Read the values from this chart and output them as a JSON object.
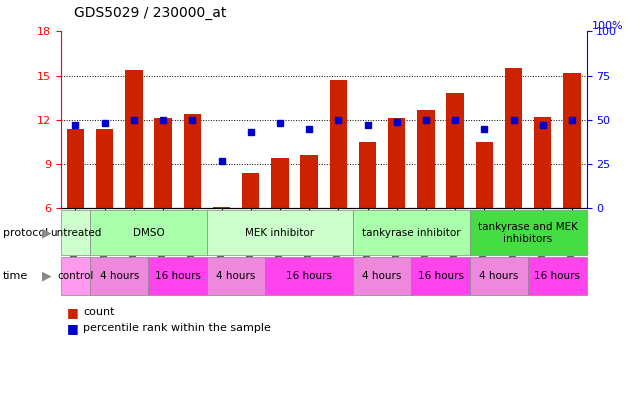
{
  "title": "GDS5029 / 230000_at",
  "samples": [
    "GSM1340521",
    "GSM1340522",
    "GSM1340523",
    "GSM1340524",
    "GSM1340531",
    "GSM1340532",
    "GSM1340527",
    "GSM1340528",
    "GSM1340535",
    "GSM1340536",
    "GSM1340525",
    "GSM1340526",
    "GSM1340533",
    "GSM1340534",
    "GSM1340529",
    "GSM1340530",
    "GSM1340537",
    "GSM1340538"
  ],
  "counts": [
    11.4,
    11.4,
    15.4,
    12.1,
    12.4,
    6.1,
    8.4,
    9.4,
    9.6,
    14.7,
    10.5,
    12.1,
    12.7,
    13.8,
    10.5,
    15.5,
    12.2,
    15.2
  ],
  "percentiles": [
    47,
    48,
    50,
    50,
    50,
    27,
    43,
    48,
    45,
    50,
    47,
    49,
    50,
    50,
    45,
    50,
    47,
    50
  ],
  "ylim_left": [
    6,
    18
  ],
  "ylim_right": [
    0,
    100
  ],
  "yticks_left": [
    6,
    9,
    12,
    15,
    18
  ],
  "yticks_right": [
    0,
    25,
    50,
    75,
    100
  ],
  "bar_color": "#CC2200",
  "dot_color": "#0000CC",
  "protocol_data": [
    {
      "label": "untreated",
      "start": 0,
      "end": 1,
      "color": "#CCFFCC"
    },
    {
      "label": "DMSO",
      "start": 1,
      "end": 5,
      "color": "#AAFFAA"
    },
    {
      "label": "MEK inhibitor",
      "start": 5,
      "end": 10,
      "color": "#CCFFCC"
    },
    {
      "label": "tankyrase inhibitor",
      "start": 10,
      "end": 14,
      "color": "#AAFFAA"
    },
    {
      "label": "tankyrase and MEK\ninhibitors",
      "start": 14,
      "end": 18,
      "color": "#44DD44"
    }
  ],
  "time_data": [
    {
      "label": "control",
      "start": 0,
      "end": 1,
      "color": "#FF99EE"
    },
    {
      "label": "4 hours",
      "start": 1,
      "end": 3,
      "color": "#EE88DD"
    },
    {
      "label": "16 hours",
      "start": 3,
      "end": 5,
      "color": "#FF44EE"
    },
    {
      "label": "4 hours",
      "start": 5,
      "end": 7,
      "color": "#EE88DD"
    },
    {
      "label": "16 hours",
      "start": 7,
      "end": 10,
      "color": "#FF44EE"
    },
    {
      "label": "4 hours",
      "start": 10,
      "end": 12,
      "color": "#EE88DD"
    },
    {
      "label": "16 hours",
      "start": 12,
      "end": 14,
      "color": "#FF44EE"
    },
    {
      "label": "4 hours",
      "start": 14,
      "end": 16,
      "color": "#EE88DD"
    },
    {
      "label": "16 hours",
      "start": 16,
      "end": 18,
      "color": "#FF44EE"
    }
  ],
  "legend_count_label": "count",
  "legend_pct_label": "percentile rank within the sample"
}
